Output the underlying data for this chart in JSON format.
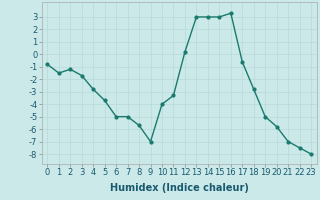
{
  "x": [
    0,
    1,
    2,
    3,
    4,
    5,
    6,
    7,
    8,
    9,
    10,
    11,
    12,
    13,
    14,
    15,
    16,
    17,
    18,
    19,
    20,
    21,
    22,
    23
  ],
  "y": [
    -0.8,
    -1.5,
    -1.2,
    -1.7,
    -2.8,
    -3.7,
    -5.0,
    -5.0,
    -5.7,
    -7.0,
    -4.0,
    -3.3,
    0.2,
    3.0,
    3.0,
    3.0,
    3.3,
    -0.6,
    -2.8,
    -5.0,
    -5.8,
    -7.0,
    -7.5,
    -8.0
  ],
  "line_color": "#1a7a6e",
  "marker": "o",
  "marker_size": 2,
  "bg_color": "#cce9e9",
  "grid_color": "#b8d8d8",
  "xlabel": "Humidex (Indice chaleur)",
  "xlim": [
    -0.5,
    23.5
  ],
  "ylim": [
    -8.8,
    4.2
  ],
  "yticks": [
    -8,
    -7,
    -6,
    -5,
    -4,
    -3,
    -2,
    -1,
    0,
    1,
    2,
    3
  ],
  "xticks": [
    0,
    1,
    2,
    3,
    4,
    5,
    6,
    7,
    8,
    9,
    10,
    11,
    12,
    13,
    14,
    15,
    16,
    17,
    18,
    19,
    20,
    21,
    22,
    23
  ],
  "xlabel_fontsize": 7,
  "tick_fontsize": 6,
  "line_width": 1.0
}
